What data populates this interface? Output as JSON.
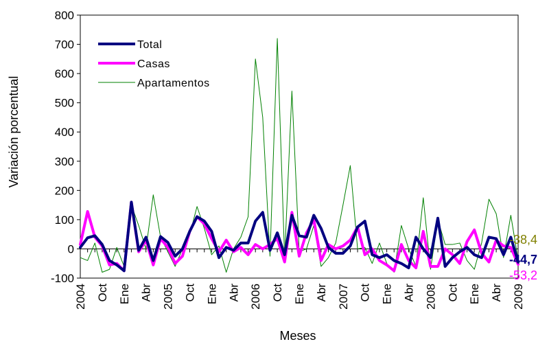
{
  "chart_data": {
    "type": "line",
    "xlabel": "Meses",
    "ylabel": "Variación porcentual",
    "ylim": [
      -100,
      800
    ],
    "yticks": [
      -100,
      0,
      100,
      200,
      300,
      400,
      500,
      600,
      700,
      800
    ],
    "grid": false,
    "legend_position": "top-left",
    "xticklabels": [
      {
        "i": 0,
        "label": "2004"
      },
      {
        "i": 3,
        "label": "Oct"
      },
      {
        "i": 6,
        "label": "Ene"
      },
      {
        "i": 9,
        "label": "Abr"
      },
      {
        "i": 12,
        "label": "2005"
      },
      {
        "i": 15,
        "label": "Oct"
      },
      {
        "i": 18,
        "label": "Ene"
      },
      {
        "i": 21,
        "label": "Abr"
      },
      {
        "i": 24,
        "label": "2006"
      },
      {
        "i": 27,
        "label": "Oct"
      },
      {
        "i": 30,
        "label": "Ene"
      },
      {
        "i": 33,
        "label": "Abr"
      },
      {
        "i": 36,
        "label": "2007"
      },
      {
        "i": 39,
        "label": "Oct"
      },
      {
        "i": 42,
        "label": "Ene"
      },
      {
        "i": 45,
        "label": "Abr"
      },
      {
        "i": 48,
        "label": "2008"
      },
      {
        "i": 51,
        "label": "Oct"
      },
      {
        "i": 54,
        "label": "Ene"
      },
      {
        "i": 57,
        "label": "Abr"
      },
      {
        "i": 60,
        "label": "2009"
      }
    ],
    "series": [
      {
        "name": "Total",
        "color": "#000080",
        "values": [
          5,
          38,
          45,
          15,
          -40,
          -55,
          -75,
          160,
          -5,
          40,
          -40,
          42,
          22,
          -25,
          0,
          60,
          110,
          95,
          60,
          -30,
          5,
          -5,
          20,
          20,
          95,
          125,
          -5,
          55,
          -20,
          115,
          45,
          40,
          115,
          70,
          5,
          -15,
          -15,
          10,
          75,
          95,
          -20,
          -30,
          -20,
          -40,
          -50,
          -65,
          40,
          0,
          -30,
          105,
          -60,
          -30,
          -10,
          5,
          -20,
          -30,
          40,
          35,
          -20,
          40,
          -45
        ],
        "label_end": "-44,7"
      },
      {
        "name": "Casas",
        "color": "#FF00FF",
        "values": [
          15,
          128,
          40,
          10,
          -55,
          -50,
          -75,
          160,
          -10,
          30,
          -55,
          35,
          5,
          -50,
          -25,
          60,
          110,
          85,
          35,
          -10,
          30,
          -10,
          5,
          -20,
          15,
          0,
          15,
          35,
          -45,
          125,
          -25,
          55,
          100,
          -40,
          15,
          0,
          10,
          30,
          75,
          -20,
          0,
          -40,
          -55,
          -75,
          15,
          -40,
          -65,
          60,
          -60,
          -60,
          0,
          -20,
          -50,
          25,
          65,
          -15,
          -45,
          30,
          10,
          5,
          -53
        ],
        "label_end": "-53,2"
      },
      {
        "name": "Apartamentos",
        "color": "#008000",
        "values": [
          -30,
          -40,
          20,
          -80,
          -70,
          5,
          -60,
          150,
          80,
          0,
          185,
          40,
          -10,
          -60,
          0,
          50,
          145,
          70,
          -20,
          10,
          -80,
          0,
          40,
          110,
          650,
          450,
          -25,
          720,
          -30,
          540,
          -10,
          0,
          80,
          -60,
          -30,
          20,
          150,
          285,
          0,
          5,
          -50,
          20,
          -50,
          -80,
          80,
          0,
          -60,
          175,
          -70,
          100,
          15,
          15,
          20,
          -40,
          -70,
          20,
          170,
          120,
          -30,
          115,
          -38
        ],
        "label_end": "-38,4",
        "label_color": "#808000"
      }
    ]
  }
}
